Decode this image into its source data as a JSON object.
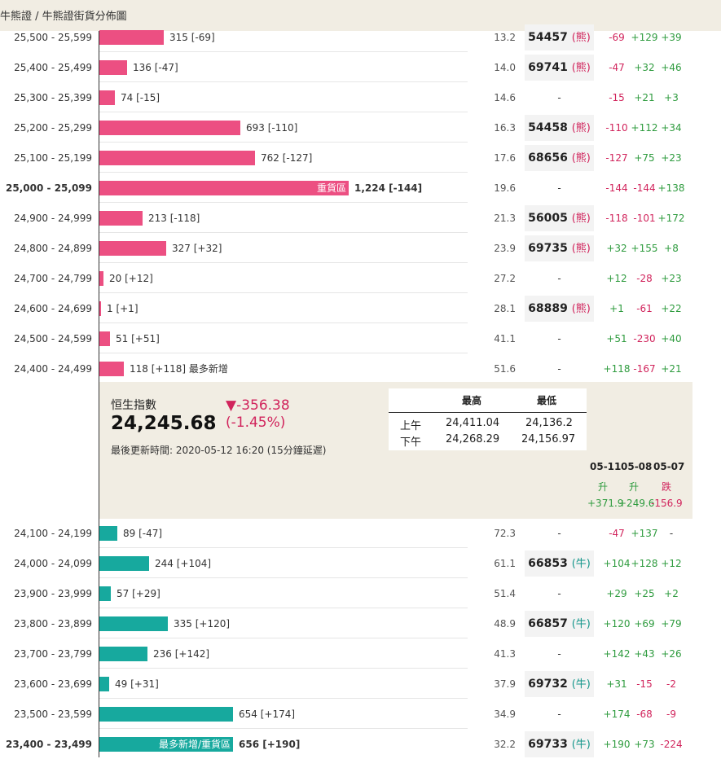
{
  "breadcrumb": "牛熊證 / 牛熊證街貨分佈圖",
  "colors": {
    "bear": "#ec4f82",
    "bull": "#17a99e",
    "up": "#2e9b3e",
    "down": "#d1245c"
  },
  "max_count": 1224,
  "bear_rows": [
    {
      "range": "25,500 - 25,599",
      "count": "315 [-69]",
      "count_value": 315,
      "bar_label": "",
      "bold": false,
      "price": "13.2",
      "code": "54457",
      "kind": "熊",
      "c1": "-69",
      "c2": "+129",
      "c3": "+39"
    },
    {
      "range": "25,400 - 25,499",
      "count": "136 [-47]",
      "count_value": 136,
      "bar_label": "",
      "bold": false,
      "price": "14.0",
      "code": "69741",
      "kind": "熊",
      "c1": "-47",
      "c2": "+32",
      "c3": "+46"
    },
    {
      "range": "25,300 - 25,399",
      "count": "74 [-15]",
      "count_value": 74,
      "bar_label": "",
      "bold": false,
      "price": "14.6",
      "code": "",
      "kind": "",
      "c1": "-15",
      "c2": "+21",
      "c3": "+3"
    },
    {
      "range": "25,200 - 25,299",
      "count": "693 [-110]",
      "count_value": 693,
      "bar_label": "",
      "bold": false,
      "price": "16.3",
      "code": "54458",
      "kind": "熊",
      "c1": "-110",
      "c2": "+112",
      "c3": "+34"
    },
    {
      "range": "25,100 - 25,199",
      "count": "762 [-127]",
      "count_value": 762,
      "bar_label": "",
      "bold": false,
      "price": "17.6",
      "code": "68656",
      "kind": "熊",
      "c1": "-127",
      "c2": "+75",
      "c3": "+23"
    },
    {
      "range": "25,000 - 25,099",
      "count": "1,224 [-144]",
      "count_value": 1224,
      "bar_label": "重貨區",
      "bold": true,
      "price": "19.6",
      "code": "",
      "kind": "",
      "c1": "-144",
      "c2": "-144",
      "c3": "+138"
    },
    {
      "range": "24,900 - 24,999",
      "count": "213 [-118]",
      "count_value": 213,
      "bar_label": "",
      "bold": false,
      "price": "21.3",
      "code": "56005",
      "kind": "熊",
      "c1": "-118",
      "c2": "-101",
      "c3": "+172"
    },
    {
      "range": "24,800 - 24,899",
      "count": "327 [+32]",
      "count_value": 327,
      "bar_label": "",
      "bold": false,
      "price": "23.9",
      "code": "69735",
      "kind": "熊",
      "c1": "+32",
      "c2": "+155",
      "c3": "+8"
    },
    {
      "range": "24,700 - 24,799",
      "count": "20 [+12]",
      "count_value": 20,
      "bar_label": "",
      "bold": false,
      "price": "27.2",
      "code": "",
      "kind": "",
      "c1": "+12",
      "c2": "-28",
      "c3": "+23"
    },
    {
      "range": "24,600 - 24,699",
      "count": "1 [+1]",
      "count_value": 1,
      "bar_label": "",
      "bold": false,
      "price": "28.1",
      "code": "68889",
      "kind": "熊",
      "c1": "+1",
      "c2": "-61",
      "c3": "+22"
    },
    {
      "range": "24,500 - 24,599",
      "count": "51 [+51]",
      "count_value": 51,
      "bar_label": "",
      "bold": false,
      "price": "41.1",
      "code": "",
      "kind": "",
      "c1": "+51",
      "c2": "-230",
      "c3": "+40"
    },
    {
      "range": "24,400 - 24,499",
      "count": "118 [+118] 最多新增",
      "count_value": 118,
      "bar_label": "",
      "bold": false,
      "price": "51.6",
      "code": "",
      "kind": "",
      "c1": "+118",
      "c2": "-167",
      "c3": "+21"
    }
  ],
  "index": {
    "name": "恒生指數",
    "value": "24,245.68",
    "change": "▼-356.38",
    "change_pct": "(-1.45%)",
    "updated": "最後更新時間: 2020-05-12 16:20 (15分鐘延遲)",
    "high_label": "最高",
    "low_label": "最低",
    "am_label": "上午",
    "pm_label": "下午",
    "am_high": "24,411.04",
    "am_low": "24,136.2",
    "pm_high": "24,268.29",
    "pm_low": "24,156.97",
    "days": [
      {
        "date": "05-11",
        "dir": "升",
        "value": "+371.9"
      },
      {
        "date": "05-08",
        "dir": "升",
        "value": "+249.6"
      },
      {
        "date": "05-07",
        "dir": "跌",
        "value": "-156.9"
      }
    ]
  },
  "bull_rows": [
    {
      "range": "24,100 - 24,199",
      "count": "89 [-47]",
      "count_value": 89,
      "bar_label": "",
      "bold": false,
      "price": "72.3",
      "code": "",
      "kind": "",
      "c1": "-47",
      "c2": "+137",
      "c3": "-"
    },
    {
      "range": "24,000 - 24,099",
      "count": "244 [+104]",
      "count_value": 244,
      "bar_label": "",
      "bold": false,
      "price": "61.1",
      "code": "66853",
      "kind": "牛",
      "c1": "+104",
      "c2": "+128",
      "c3": "+12"
    },
    {
      "range": "23,900 - 23,999",
      "count": "57 [+29]",
      "count_value": 57,
      "bar_label": "",
      "bold": false,
      "price": "51.4",
      "code": "",
      "kind": "",
      "c1": "+29",
      "c2": "+25",
      "c3": "+2"
    },
    {
      "range": "23,800 - 23,899",
      "count": "335 [+120]",
      "count_value": 335,
      "bar_label": "",
      "bold": false,
      "price": "48.9",
      "code": "66857",
      "kind": "牛",
      "c1": "+120",
      "c2": "+69",
      "c3": "+79"
    },
    {
      "range": "23,700 - 23,799",
      "count": "236 [+142]",
      "count_value": 236,
      "bar_label": "",
      "bold": false,
      "price": "41.3",
      "code": "",
      "kind": "",
      "c1": "+142",
      "c2": "+43",
      "c3": "+26"
    },
    {
      "range": "23,600 - 23,699",
      "count": "49 [+31]",
      "count_value": 49,
      "bar_label": "",
      "bold": false,
      "price": "37.9",
      "code": "69732",
      "kind": "牛",
      "c1": "+31",
      "c2": "-15",
      "c3": "-2"
    },
    {
      "range": "23,500 - 23,599",
      "count": "654 [+174]",
      "count_value": 654,
      "bar_label": "",
      "bold": false,
      "price": "34.9",
      "code": "",
      "kind": "",
      "c1": "+174",
      "c2": "-68",
      "c3": "-9"
    },
    {
      "range": "23,400 - 23,499",
      "count": "656 [+190]",
      "count_value": 656,
      "bar_label": "最多新增/重貨區",
      "bold": true,
      "price": "32.2",
      "code": "69733",
      "kind": "牛",
      "c1": "+190",
      "c2": "+73",
      "c3": "-224"
    }
  ]
}
